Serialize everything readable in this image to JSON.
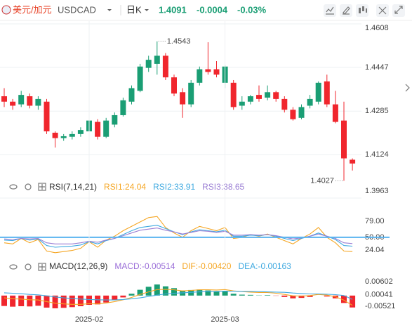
{
  "header": {
    "name": "美元/加元",
    "symbol": "USDCAD",
    "period": "日K",
    "price": "1.4091",
    "change": "-0.0004",
    "change_pct": "-0.03%"
  },
  "chart_data": [
    {
      "type": "candlestick",
      "up_color": "#1a9e74",
      "down_color": "#f0262d",
      "grid": true,
      "ylim": [
        1.3963,
        1.4608
      ],
      "yticks": [
        1.4608,
        1.4447,
        1.4285,
        1.4124,
        1.3963
      ],
      "max_label": 1.4543,
      "min_label": 1.4027,
      "open": [
        1.434,
        1.432,
        1.431,
        1.434,
        1.4305,
        1.432,
        1.4205,
        1.4185,
        1.419,
        1.42,
        1.421,
        1.4245,
        1.419,
        1.4235,
        1.427,
        1.432,
        1.436,
        1.4445,
        1.446,
        1.449,
        1.441,
        1.4355,
        1.431,
        1.439,
        1.444,
        1.444,
        1.439,
        1.439,
        1.4305,
        1.432,
        1.4345,
        1.4335,
        1.4355,
        1.433,
        1.429,
        1.426,
        1.4305,
        1.432,
        1.4395,
        1.431,
        1.425,
        1.4105
      ],
      "high": [
        1.437,
        1.433,
        1.436,
        1.435,
        1.434,
        1.433,
        1.421,
        1.42,
        1.421,
        1.4225,
        1.426,
        1.4255,
        1.426,
        1.428,
        1.4335,
        1.438,
        1.446,
        1.449,
        1.4543,
        1.45,
        1.442,
        1.437,
        1.44,
        1.445,
        1.454,
        1.447,
        1.4455,
        1.44,
        1.434,
        1.4345,
        1.438,
        1.438,
        1.436,
        1.434,
        1.43,
        1.431,
        1.4345,
        1.4395,
        1.442,
        1.436,
        1.432,
        1.411
      ],
      "low": [
        1.43,
        1.429,
        1.43,
        1.4295,
        1.429,
        1.42,
        1.415,
        1.4175,
        1.418,
        1.419,
        1.42,
        1.418,
        1.4185,
        1.4225,
        1.4265,
        1.431,
        1.4355,
        1.443,
        1.442,
        1.44,
        1.434,
        1.426,
        1.43,
        1.438,
        1.442,
        1.441,
        1.437,
        1.429,
        1.429,
        1.431,
        1.432,
        1.4325,
        1.432,
        1.428,
        1.425,
        1.4255,
        1.4295,
        1.431,
        1.43,
        1.424,
        1.4027,
        1.4065
      ],
      "close": [
        1.432,
        1.4305,
        1.4345,
        1.4305,
        1.433,
        1.421,
        1.4185,
        1.4192,
        1.42,
        1.4215,
        1.425,
        1.419,
        1.425,
        1.427,
        1.4325,
        1.437,
        1.445,
        1.4475,
        1.449,
        1.441,
        1.435,
        1.431,
        1.439,
        1.444,
        1.443,
        1.442,
        1.445,
        1.43,
        1.432,
        1.434,
        1.433,
        1.4355,
        1.433,
        1.429,
        1.4255,
        1.43,
        1.433,
        1.439,
        1.431,
        1.4245,
        1.411,
        1.4091
      ]
    },
    {
      "type": "line",
      "title": "RSI(7,14,21)",
      "ylim": [
        14,
        96
      ],
      "yticks": [
        {
          "value": 79,
          "label": "79.00"
        },
        {
          "value": 50,
          "label": "50.00"
        },
        24.04
      ],
      "hline": 50,
      "hline_color": "#5ab4f0",
      "series": [
        {
          "name": "RSI1:24.04",
          "color": "#f5a623",
          "values": [
            40,
            38,
            48,
            40,
            46,
            25,
            22,
            24,
            26,
            30,
            42,
            32,
            45,
            52,
            62,
            70,
            78,
            86,
            88,
            68,
            58,
            50,
            62,
            70,
            66,
            62,
            68,
            48,
            50,
            55,
            52,
            56,
            50,
            44,
            38,
            48,
            56,
            68,
            50,
            40,
            25,
            24.04
          ]
        },
        {
          "name": "RSI2:33.91",
          "color": "#3fa9e0",
          "values": [
            45,
            44,
            48,
            45,
            47,
            35,
            32,
            33,
            34,
            36,
            42,
            38,
            44,
            48,
            55,
            62,
            68,
            70,
            72,
            66,
            60,
            55,
            60,
            64,
            62,
            60,
            63,
            52,
            52,
            54,
            53,
            55,
            52,
            48,
            44,
            48,
            52,
            58,
            52,
            46,
            35,
            33.91
          ]
        },
        {
          "name": "RSI3:38.65",
          "color": "#9b7fd4",
          "values": [
            47,
            46,
            48,
            47,
            48,
            40,
            38,
            38,
            38,
            40,
            43,
            41,
            45,
            48,
            53,
            58,
            63,
            65,
            67,
            63,
            60,
            56,
            59,
            62,
            61,
            59,
            61,
            54,
            54,
            55,
            54,
            55,
            53,
            50,
            47,
            49,
            52,
            56,
            52,
            48,
            40,
            38.65
          ]
        }
      ]
    },
    {
      "type": "macd",
      "title": "MACD(12,26,9)",
      "ylim": [
        -0.00764,
        0.00875
      ],
      "yticks": [
        0.00602,
        0.00041,
        -0.00521
      ],
      "up_color": "#1a9e74",
      "down_color": "#f0262d",
      "categories": [
        null,
        null,
        null,
        null,
        null,
        null,
        null,
        null,
        null,
        null,
        "2025-02",
        null,
        null,
        null,
        null,
        null,
        null,
        null,
        null,
        null,
        null,
        null,
        null,
        null,
        null,
        null,
        "2025-03",
        null,
        null,
        null,
        null,
        null,
        null,
        null,
        null,
        null,
        null,
        null,
        null,
        null,
        null,
        null
      ],
      "series": [
        {
          "name": "MACD:-0.00514",
          "color": "#9b6fd8",
          "type": "bar",
          "values": [
            -0.0045,
            -0.0048,
            -0.0046,
            -0.0047,
            -0.0044,
            -0.0052,
            -0.0055,
            -0.0053,
            -0.005,
            -0.0046,
            -0.004,
            -0.0038,
            -0.003,
            -0.002,
            -0.0008,
            0.0008,
            0.0025,
            0.0038,
            0.0048,
            0.004,
            0.0032,
            0.0022,
            0.0024,
            0.0026,
            0.0022,
            0.0018,
            0.002,
            0.0008,
            0.0004,
            0.0003,
            0.0001,
            0.0002,
            -0.0001,
            -0.0006,
            -0.0012,
            -0.001,
            -0.0006,
            0.0,
            -0.0004,
            -0.0012,
            -0.0032,
            -0.00514
          ]
        },
        {
          "name": "DIF:-0.00420",
          "color": "#f5a623",
          "type": "line",
          "values": [
            -0.001,
            -0.0014,
            -0.0015,
            -0.0018,
            -0.0019,
            -0.0026,
            -0.0033,
            -0.0036,
            -0.0038,
            -0.0038,
            -0.0035,
            -0.0036,
            -0.0032,
            -0.0026,
            -0.0018,
            -0.0008,
            0.0005,
            0.0016,
            0.0026,
            0.0027,
            0.0025,
            0.002,
            0.0022,
            0.0025,
            0.0025,
            0.0024,
            0.0026,
            0.002,
            0.0017,
            0.0015,
            0.0013,
            0.0013,
            0.001,
            0.0005,
            -0.0001,
            -0.0002,
            0.0,
            0.0005,
            0.0002,
            -0.0005,
            -0.002,
            -0.0042
          ]
        },
        {
          "name": "DEA:-0.00163",
          "color": "#3fa9e0",
          "type": "line",
          "values": [
            0.0012,
            0.001,
            0.0008,
            0.0005,
            0.0003,
            -0.0001,
            -0.0006,
            -0.001,
            -0.0013,
            -0.0015,
            -0.0017,
            -0.0018,
            -0.0019,
            -0.0019,
            -0.0017,
            -0.0014,
            -0.001,
            -0.0004,
            0.0002,
            0.0007,
            0.001,
            0.0012,
            0.0014,
            0.0016,
            0.0017,
            0.0018,
            0.0019,
            0.0019,
            0.0018,
            0.0018,
            0.0017,
            0.0016,
            0.0015,
            0.0014,
            0.0011,
            0.0009,
            0.0007,
            0.0007,
            0.0006,
            0.0004,
            0.0,
            -0.00163
          ]
        }
      ]
    }
  ]
}
